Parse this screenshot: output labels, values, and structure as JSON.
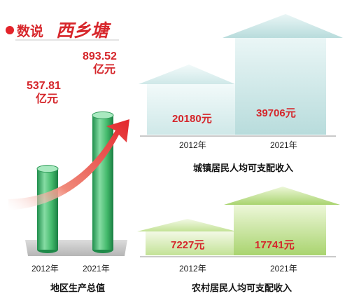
{
  "header": {
    "title_main": "数说",
    "title_brush": "西乡塘"
  },
  "chart_data": [
    {
      "type": "bar",
      "title": "地区生产总值",
      "categories": [
        "2012年",
        "2021年"
      ],
      "values": [
        537.81,
        893.52
      ],
      "value_labels": [
        {
          "number": "537.81",
          "unit": "亿元"
        },
        {
          "number": "893.52",
          "unit": "亿元"
        }
      ],
      "colors": {
        "bar": "#3fb86a",
        "arrow": "#e3262c",
        "base": "#c9c9c9"
      }
    },
    {
      "type": "bar",
      "title": "城镇居民人均可支配收入",
      "categories": [
        "2012年",
        "2021年"
      ],
      "values": [
        20180,
        39706
      ],
      "value_labels": [
        "20180元",
        "39706元"
      ],
      "colors": {
        "house": "#c7e4e4"
      }
    },
    {
      "type": "bar",
      "title": "农村居民人均可支配收入",
      "categories": [
        "2012年",
        "2021年"
      ],
      "values": [
        7227,
        17741
      ],
      "value_labels": [
        "7227元",
        "17741元"
      ],
      "colors": {
        "house": "#bfdf8f"
      }
    }
  ]
}
